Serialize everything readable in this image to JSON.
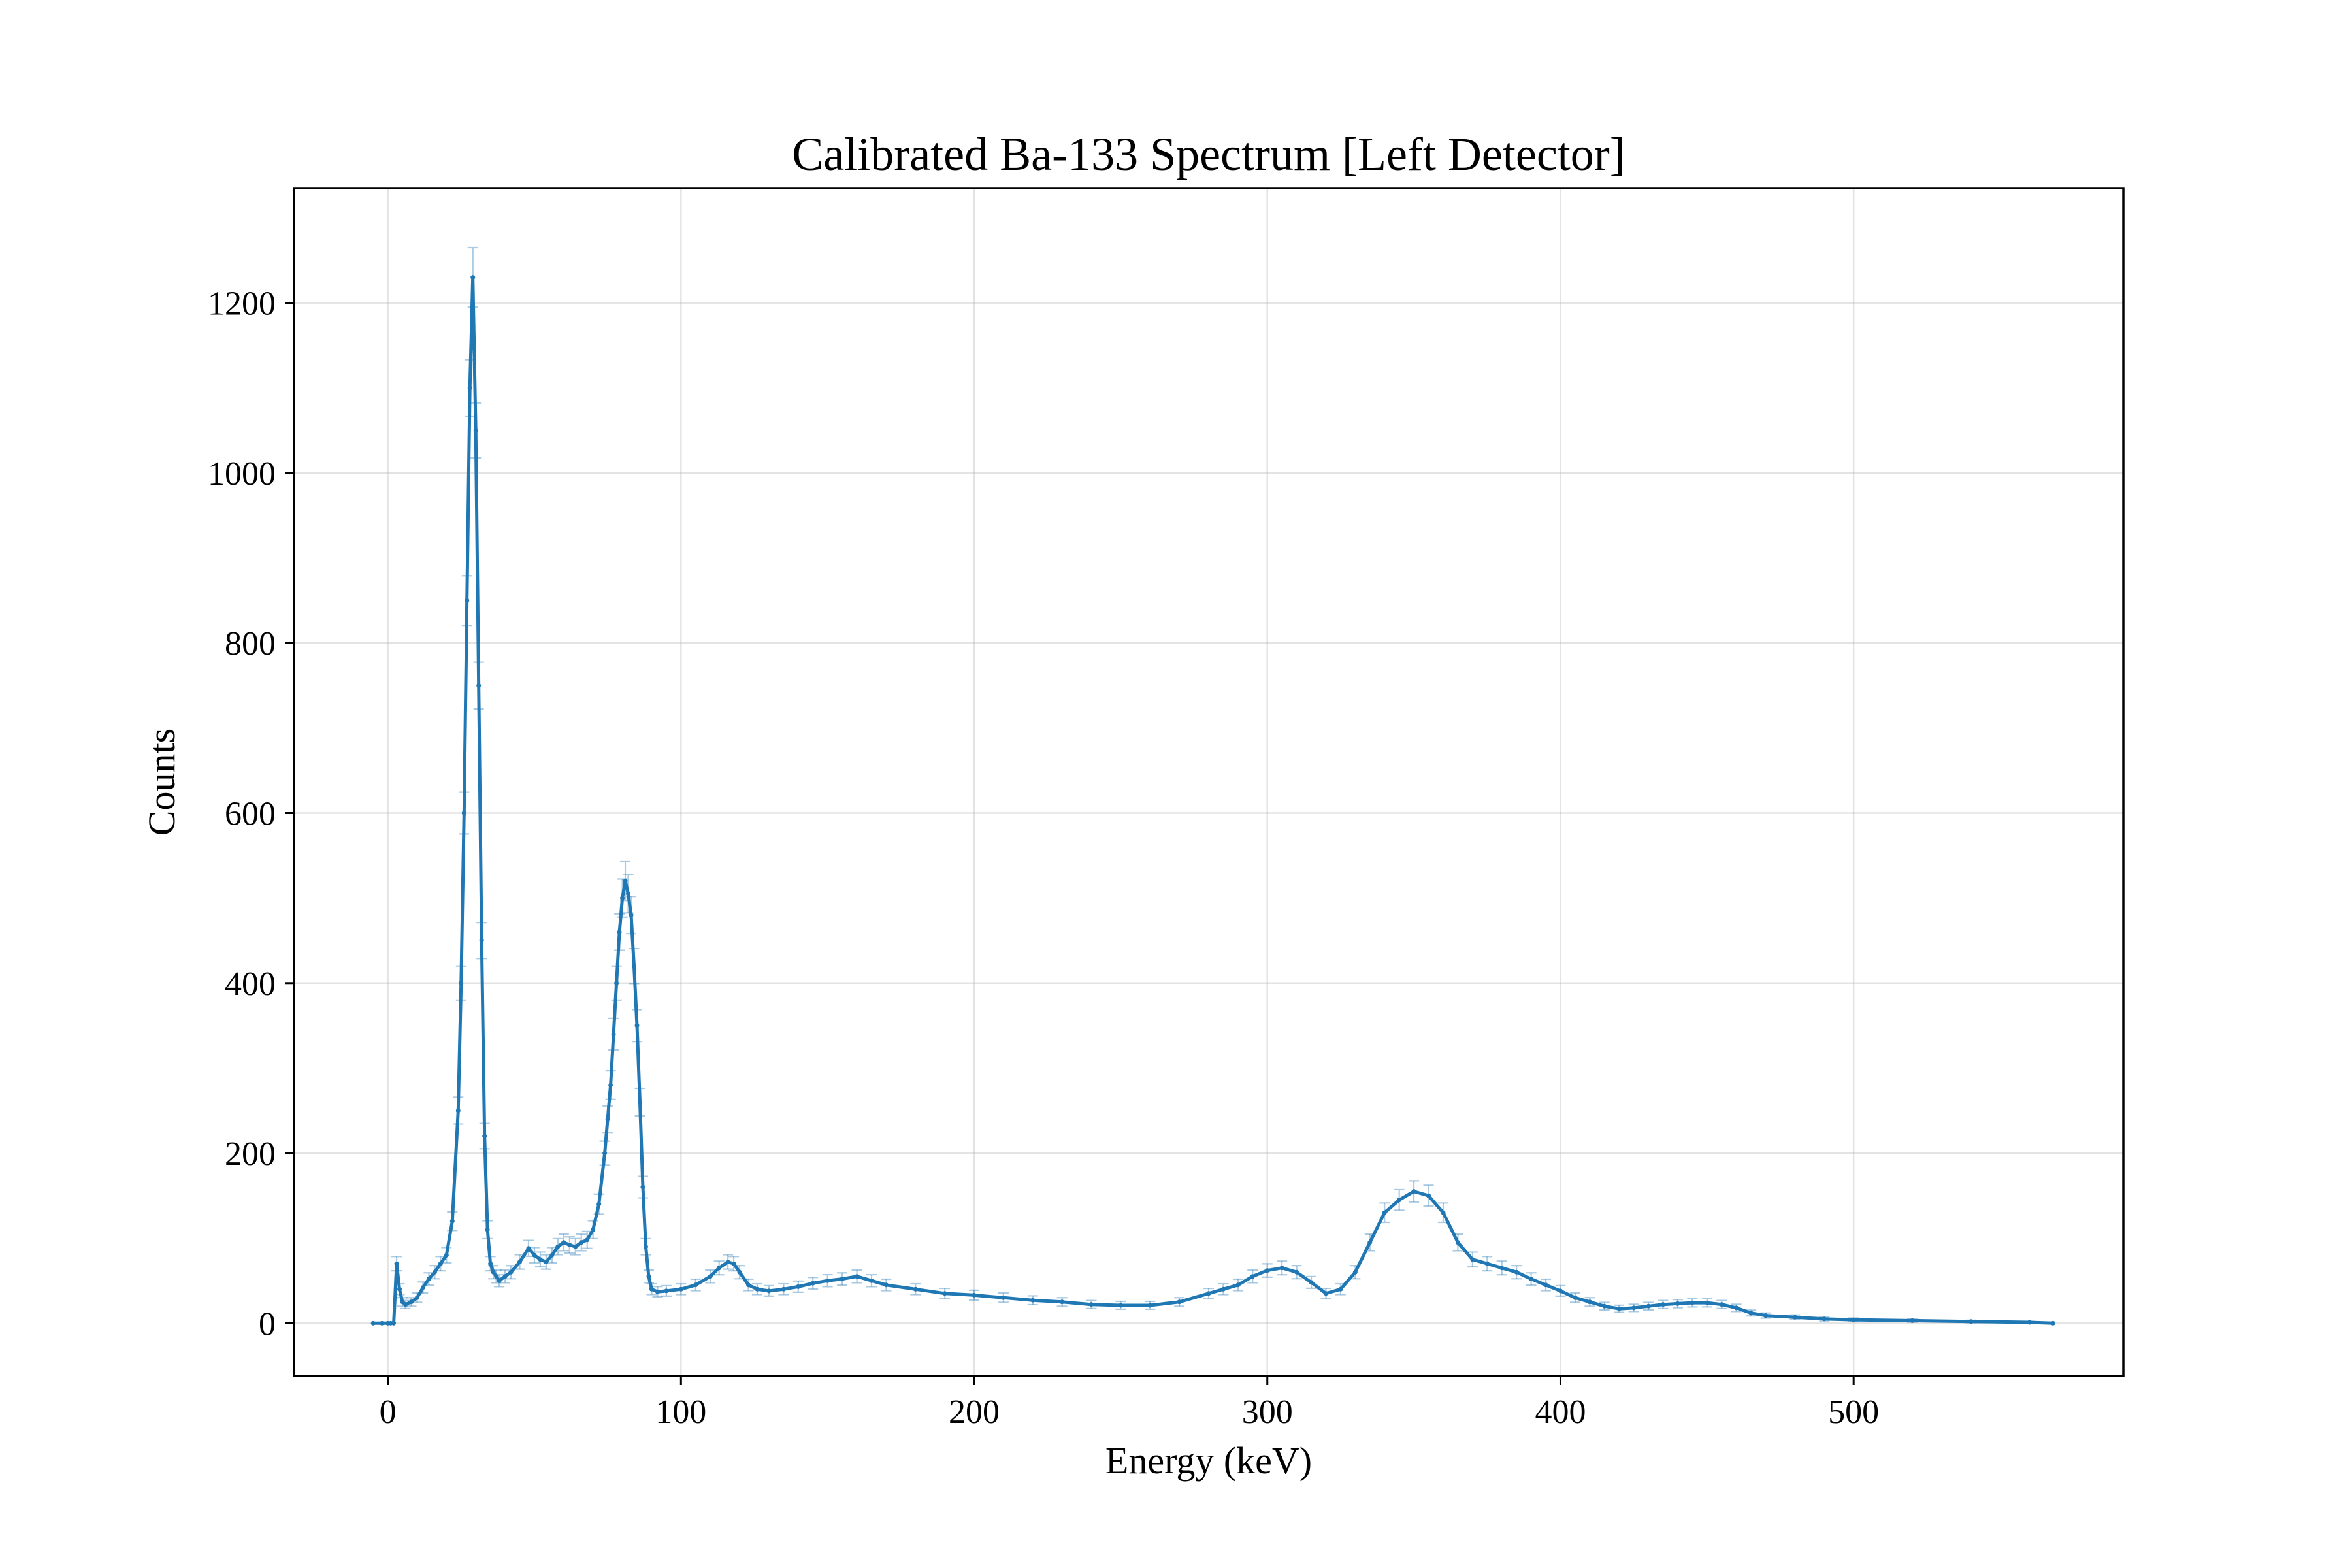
{
  "chart_data": {
    "type": "line",
    "title": "Calibrated Ba-133 Spectrum [Left Detector]",
    "xlabel": "Energy (keV)",
    "ylabel": "Counts",
    "xlim": [
      -32,
      592
    ],
    "ylim": [
      -62,
      1335
    ],
    "xticks": [
      0,
      100,
      200,
      300,
      400,
      500
    ],
    "yticks": [
      0,
      200,
      400,
      600,
      800,
      1000,
      1200
    ],
    "grid": true,
    "legend": "none",
    "color": "#1f77b4",
    "series": [
      {
        "x": [
          -5,
          -2,
          0,
          1,
          2,
          3,
          4,
          5,
          6,
          8,
          10,
          12,
          14,
          16,
          18,
          20,
          22,
          24,
          25,
          26,
          27,
          28,
          29,
          30,
          31,
          32,
          33,
          34,
          35,
          36,
          37,
          38,
          40,
          42,
          45,
          48,
          50,
          52,
          54,
          56,
          58,
          60,
          62,
          64,
          66,
          68,
          70,
          72,
          74,
          75,
          76,
          77,
          78,
          79,
          80,
          81,
          82,
          83,
          84,
          85,
          86,
          87,
          88,
          89,
          90,
          92,
          95,
          100,
          105,
          110,
          113,
          116,
          118,
          120,
          123,
          126,
          130,
          135,
          140,
          145,
          150,
          155,
          160,
          165,
          170,
          180,
          190,
          200,
          210,
          220,
          230,
          240,
          250,
          260,
          270,
          280,
          285,
          290,
          295,
          300,
          305,
          310,
          315,
          320,
          325,
          330,
          335,
          340,
          345,
          350,
          355,
          360,
          365,
          370,
          375,
          380,
          385,
          390,
          395,
          400,
          405,
          410,
          415,
          420,
          425,
          430,
          435,
          440,
          445,
          450,
          455,
          460,
          465,
          470,
          480,
          490,
          500,
          520,
          540,
          560,
          568
        ],
        "y": [
          0,
          0,
          0,
          0,
          0,
          70,
          40,
          25,
          22,
          25,
          30,
          42,
          52,
          60,
          70,
          80,
          120,
          250,
          400,
          600,
          850,
          1100,
          1230,
          1050,
          750,
          450,
          220,
          110,
          70,
          60,
          55,
          50,
          55,
          60,
          72,
          88,
          80,
          75,
          72,
          80,
          90,
          95,
          92,
          90,
          95,
          98,
          110,
          140,
          200,
          240,
          280,
          340,
          400,
          460,
          500,
          520,
          505,
          480,
          420,
          350,
          260,
          160,
          90,
          55,
          40,
          37,
          38,
          40,
          45,
          55,
          65,
          72,
          70,
          60,
          45,
          40,
          38,
          40,
          43,
          47,
          50,
          52,
          55,
          50,
          45,
          40,
          35,
          33,
          30,
          27,
          25,
          22,
          21,
          21,
          25,
          35,
          40,
          45,
          55,
          62,
          65,
          60,
          48,
          35,
          40,
          60,
          95,
          130,
          145,
          155,
          150,
          130,
          95,
          75,
          70,
          65,
          60,
          52,
          45,
          38,
          30,
          25,
          20,
          17,
          18,
          20,
          22,
          23,
          24,
          24,
          22,
          18,
          12,
          9,
          7,
          5,
          4,
          3,
          2,
          1,
          0
        ]
      }
    ]
  }
}
